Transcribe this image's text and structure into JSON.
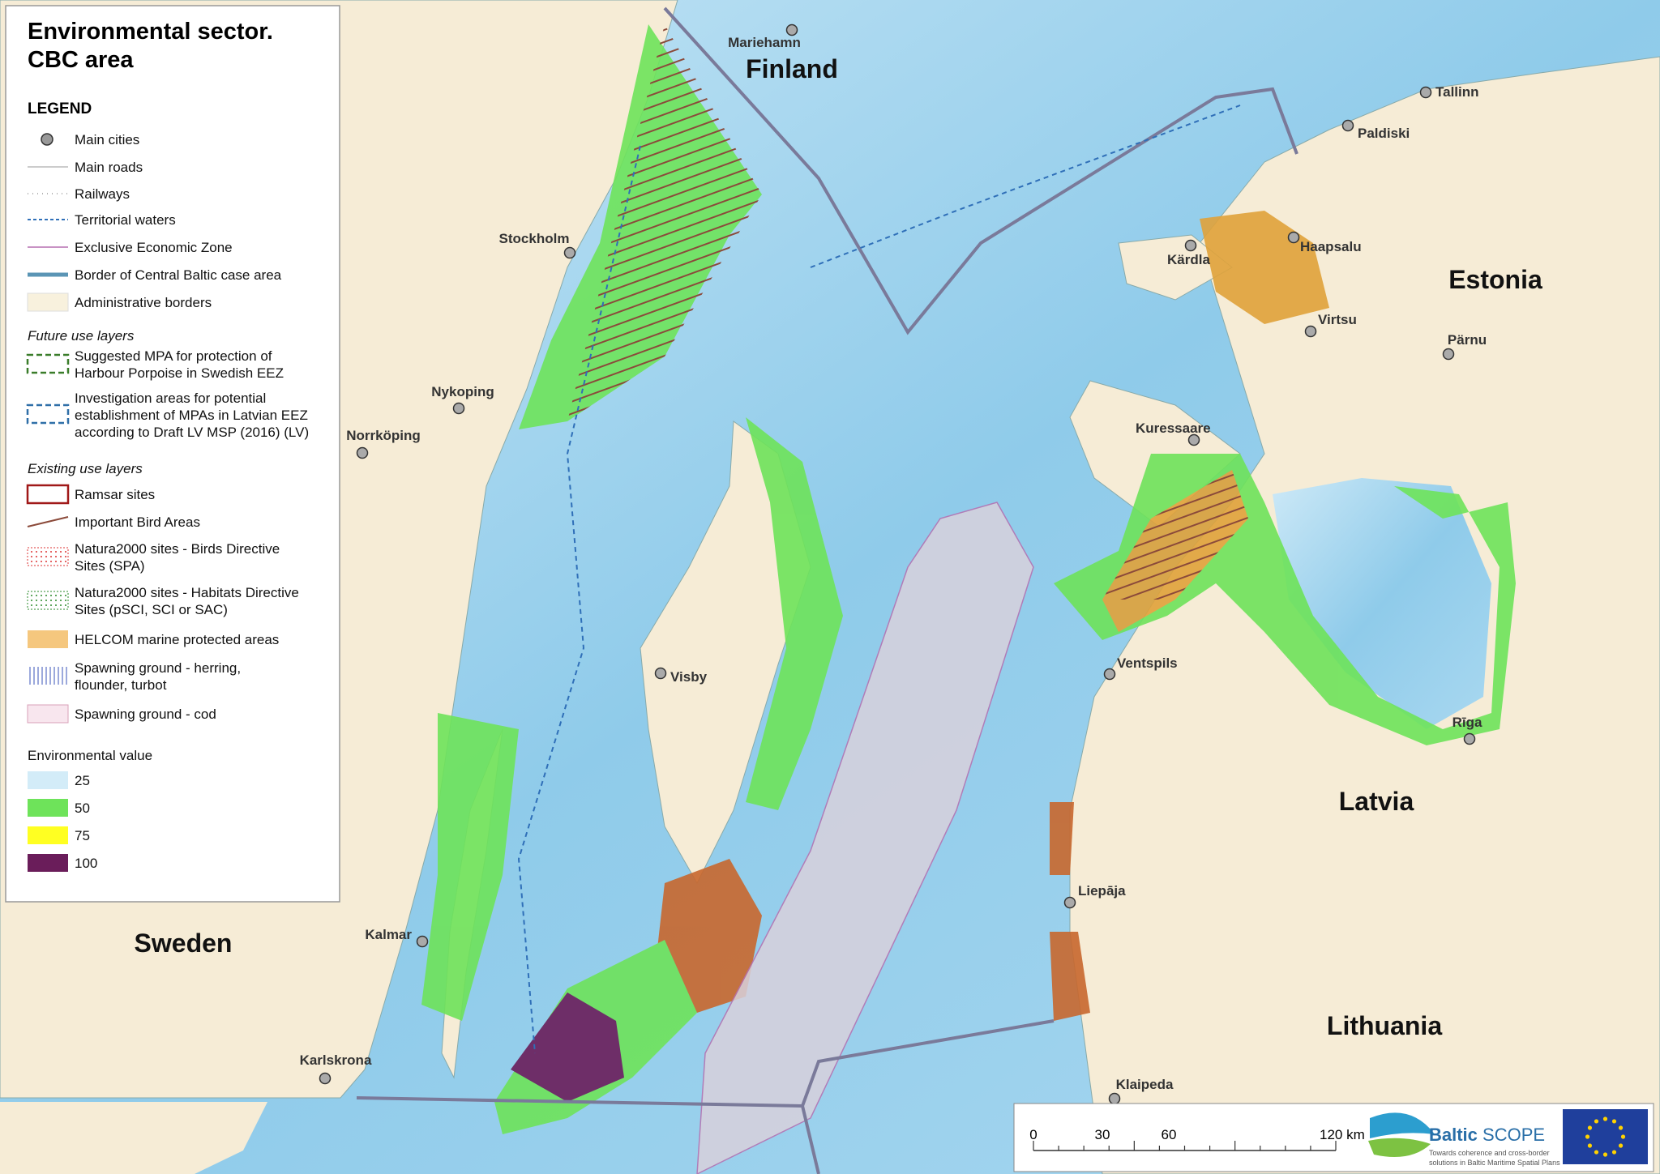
{
  "legend": {
    "title": [
      "Environmental sector.",
      "CBC area"
    ],
    "heading": "LEGEND",
    "base_items": [
      {
        "lines": [
          "Main cities"
        ]
      },
      {
        "lines": [
          "Main roads"
        ]
      },
      {
        "lines": [
          "Railways"
        ]
      },
      {
        "lines": [
          "Territorial waters"
        ]
      },
      {
        "lines": [
          "Exclusive Economic Zone"
        ]
      },
      {
        "lines": [
          "Border of Central Baltic case area"
        ]
      },
      {
        "lines": [
          "Administrative borders"
        ]
      }
    ],
    "future_heading": "Future use layers",
    "future_items": [
      {
        "lines": [
          "Suggested MPA for protection of",
          "Harbour Porpoise in Swedish EEZ"
        ]
      },
      {
        "lines": [
          "Investigation areas for potential",
          "establishment of MPAs in Latvian EEZ",
          "according to Draft LV MSP (2016) (LV)"
        ]
      }
    ],
    "existing_heading": "Existing use layers",
    "existing_items": [
      {
        "lines": [
          "Ramsar sites"
        ]
      },
      {
        "lines": [
          "Important Bird Areas"
        ]
      },
      {
        "lines": [
          "Natura2000 sites - Birds Directive",
          "Sites (SPA)"
        ]
      },
      {
        "lines": [
          "Natura2000 sites - Habitats Directive",
          "Sites (pSCI, SCI or SAC)"
        ]
      },
      {
        "lines": [
          "HELCOM marine protected areas"
        ]
      },
      {
        "lines": [
          "Spawning ground - herring,",
          "flounder, turbot"
        ]
      },
      {
        "lines": [
          "Spawning ground - cod"
        ]
      }
    ],
    "value_heading": "Environmental value",
    "value_items": [
      "25",
      "50",
      "75",
      "100"
    ]
  },
  "countries": [
    "Finland",
    "Estonia",
    "Latvia",
    "Lithuania",
    "Sweden"
  ],
  "cities": [
    "Mariehamn",
    "Tallinn",
    "Paldiski",
    "Haapsalu",
    "Kärdla",
    "Virtsu",
    "Pärnu",
    "Kuressaare",
    "Ventspils",
    "Rīga",
    "Liepāja",
    "Klaipeda",
    "Stockholm",
    "Nykoping",
    "Norrköping",
    "Visby",
    "Kalmar",
    "Karlskrona"
  ],
  "scale_bar": {
    "labels": [
      "0",
      "30",
      "60",
      "120 km"
    ]
  },
  "logo": {
    "name": "Baltic",
    "name_suffix": "SCOPE",
    "tagline": [
      "Towards coherence and cross-border",
      "solutions in Baltic Maritime Spatial Plans"
    ]
  }
}
